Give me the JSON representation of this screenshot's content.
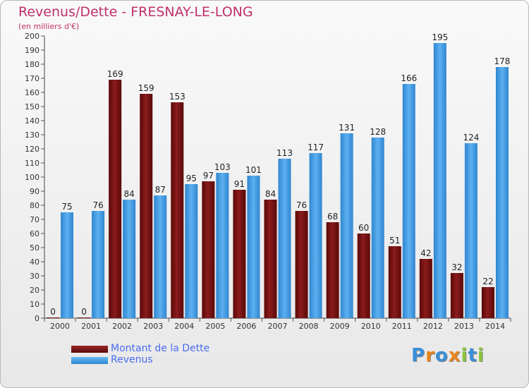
{
  "header": {
    "title": "Revenus/Dette - FRESNAY-LE-LONG",
    "subtitle": "(en milliers d'€)"
  },
  "legend": [
    {
      "label": "Montant de la Dette",
      "color": "#7a1010"
    },
    {
      "label": "Revenus",
      "color": "#4da3e8"
    }
  ],
  "logo": {
    "text": "Proxiti",
    "letters": [
      "P",
      "r",
      "o",
      "x",
      "i",
      "t",
      "i"
    ],
    "colors": [
      "#3a8fd8",
      "#e8841a",
      "#3a8fd8",
      "#e8841a",
      "#8ac43a",
      "#3a8fd8",
      "#8ac43a"
    ]
  },
  "chart_data": {
    "type": "bar",
    "title": "Revenus/Dette - FRESNAY-LE-LONG",
    "subtitle": "(en milliers d'€)",
    "categories": [
      "2000",
      "2001",
      "2002",
      "2003",
      "2004",
      "2005",
      "2006",
      "2007",
      "2008",
      "2009",
      "2010",
      "2011",
      "2012",
      "2013",
      "2014"
    ],
    "series": [
      {
        "name": "Montant de la Dette",
        "color": "#7a1010",
        "values": [
          0,
          0,
          169,
          159,
          153,
          97,
          91,
          84,
          76,
          68,
          60,
          51,
          42,
          32,
          22
        ]
      },
      {
        "name": "Revenus",
        "color": "#4da3e8",
        "values": [
          75,
          76,
          84,
          87,
          95,
          103,
          101,
          113,
          117,
          131,
          128,
          166,
          195,
          124,
          178
        ]
      }
    ],
    "ylim": [
      0,
      200
    ],
    "yticks": [
      0,
      10,
      20,
      30,
      40,
      50,
      60,
      70,
      80,
      90,
      100,
      110,
      120,
      130,
      140,
      150,
      160,
      170,
      180,
      190,
      200
    ],
    "grid": false,
    "legend_position": "bottom-left"
  }
}
